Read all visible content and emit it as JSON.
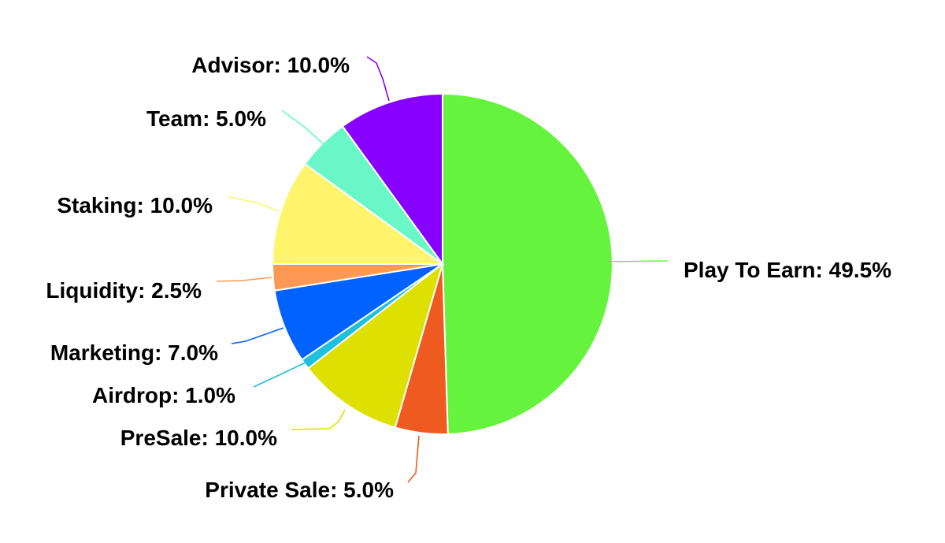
{
  "chart_data": {
    "type": "pie",
    "title": "",
    "slices": [
      {
        "name": "Play To Earn",
        "value": 49.5,
        "label": "Play To Earn: 49.5%",
        "color": "#65F33D"
      },
      {
        "name": "Private Sale",
        "value": 5.0,
        "label": "Private Sale: 5.0%",
        "color": "#EE5A1F"
      },
      {
        "name": "PreSale",
        "value": 10.0,
        "label": "PreSale: 10.0%",
        "color": "#DDE000"
      },
      {
        "name": "Airdrop",
        "value": 1.0,
        "label": "Airdrop: 1.0%",
        "color": "#1EC0DE"
      },
      {
        "name": "Marketing",
        "value": 7.0,
        "label": "Marketing: 7.0%",
        "color": "#0062FF"
      },
      {
        "name": "Liquidity",
        "value": 2.5,
        "label": "Liquidity: 2.5%",
        "color": "#FD9955"
      },
      {
        "name": "Staking",
        "value": 10.0,
        "label": "Staking: 10.0%",
        "color": "#FFF46B"
      },
      {
        "name": "Team",
        "value": 5.0,
        "label": "Team: 5.0%",
        "color": "#6AF7C8"
      },
      {
        "name": "Advisor",
        "value": 10.0,
        "label": "Advisor: 10.0%",
        "color": "#8800FF"
      }
    ],
    "start_angle": "12 o'clock",
    "direction": "clockwise",
    "legend": "none",
    "labels": "outside with leader lines"
  }
}
